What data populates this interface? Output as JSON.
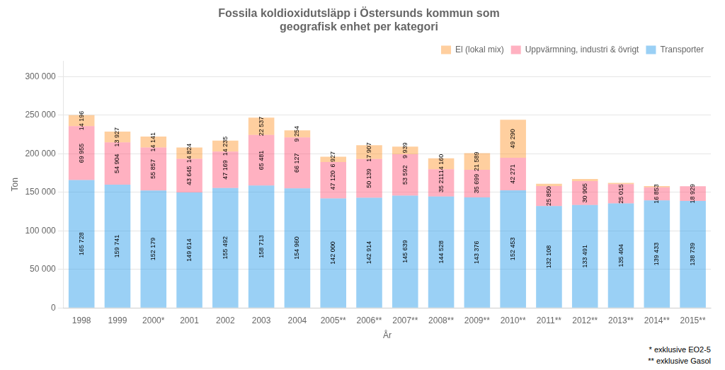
{
  "chart_data": {
    "type": "bar",
    "stacked": true,
    "title": "Fossila koldioxidutsläpp i Östersunds kommun som\ngeografisk enhet per kategori",
    "xlabel": "År",
    "ylabel": "Ton",
    "categories": [
      "1998",
      "1999",
      "2000*",
      "2001",
      "2002",
      "2003",
      "2004",
      "2005**",
      "2006**",
      "2007**",
      "2008**",
      "2009**",
      "2010**",
      "2011**",
      "2012**",
      "2013**",
      "2014**",
      "2015**"
    ],
    "series": [
      {
        "name": "Transporter",
        "values": [
          165728,
          159741,
          152179,
          149614,
          155492,
          158713,
          154960,
          142000,
          142914,
          145639,
          144528,
          143376,
          152453,
          132108,
          133491,
          135404,
          139433,
          138739
        ],
        "value_labels": [
          "165 728",
          "159 741",
          "152 179",
          "149 614",
          "155 492",
          "158 713",
          "154 960",
          "142 000",
          "142 914",
          "145 639",
          "144 528",
          "143 376",
          "152 453",
          "132 108",
          "133 491",
          "135 404",
          "139 433",
          "138 739"
        ]
      },
      {
        "name": "Uppvärmning, industri & övrigt",
        "values": [
          69955,
          54904,
          55857,
          43645,
          47169,
          65481,
          66127,
          47120,
          50139,
          53592,
          35211,
          35699,
          42271,
          25850,
          30905,
          25015,
          16853,
          18929
        ],
        "value_labels": [
          "69 955",
          "54 904",
          "55 857",
          "43 645",
          "47 169",
          "65 481",
          "66 127",
          "47 120",
          "50 139",
          "53 592",
          "35 211",
          "35 699",
          "42 271",
          "25 850",
          "30 905",
          "25 015",
          "16 853",
          "18 929"
        ]
      },
      {
        "name": "El (lokal mix)",
        "values": [
          14196,
          13927,
          14141,
          14824,
          14235,
          22537,
          9254,
          6927,
          17907,
          9939,
          14160,
          21589,
          49290,
          2897,
          2859,
          1694,
          1666,
          17
        ],
        "value_labels": [
          "14 196",
          "13 927",
          "14 141",
          "14 824",
          "14 235",
          "22 537",
          "9 254",
          "6 927",
          "17 907",
          "9 939",
          "14 160",
          "21 589",
          "49 290",
          null,
          null,
          null,
          null,
          null
        ]
      }
    ],
    "ylim": [
      0,
      320000
    ],
    "yticks": [
      0,
      {
        "value": 50000,
        "label": "50 000"
      },
      {
        "value": 100000,
        "label": "100 000"
      },
      {
        "value": 150000,
        "label": "150 000"
      },
      {
        "value": 200000,
        "label": "200 000"
      },
      {
        "value": 250000,
        "label": "250 000"
      },
      {
        "value": 300000,
        "label": "300 000"
      }
    ],
    "grid": true,
    "legend": "upper right",
    "data_labels": true,
    "annotations": [
      "* exklusive EO2-5",
      "** exklusive Gasol"
    ]
  }
}
